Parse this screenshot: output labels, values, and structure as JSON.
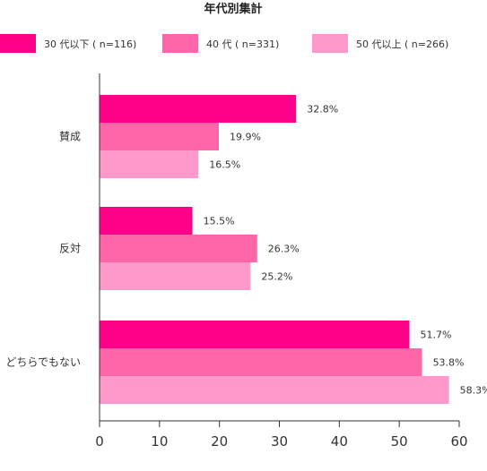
{
  "chart_data": {
    "type": "bar",
    "orientation": "horizontal",
    "title": "年代別集計",
    "categories": [
      "賛成",
      "反対",
      "どちらでもない"
    ],
    "series": [
      {
        "name": "30 代以下 ( n=116)",
        "color": "#ff0088",
        "values": [
          32.8,
          15.5,
          51.7
        ],
        "labels": [
          "32.8%",
          "15.5%",
          "51.7%"
        ]
      },
      {
        "name": "40 代 ( n=331)",
        "color": "#ff66aa",
        "values": [
          19.9,
          26.3,
          53.8
        ],
        "labels": [
          "19.9%",
          "26.3%",
          "53.8%"
        ]
      },
      {
        "name": "50 代以上 ( n=266)",
        "color": "#ff99cc",
        "values": [
          16.5,
          25.2,
          58.3
        ],
        "labels": [
          "16.5%",
          "25.2%",
          "58.3%"
        ]
      }
    ],
    "xlim": [
      0,
      60
    ],
    "xticks": [
      0,
      10,
      20,
      30,
      40,
      50,
      60
    ],
    "xtick_labels": [
      "0",
      "10",
      "20",
      "30",
      "40",
      "50",
      "60"
    ],
    "grid": false,
    "legend_position": "top"
  }
}
